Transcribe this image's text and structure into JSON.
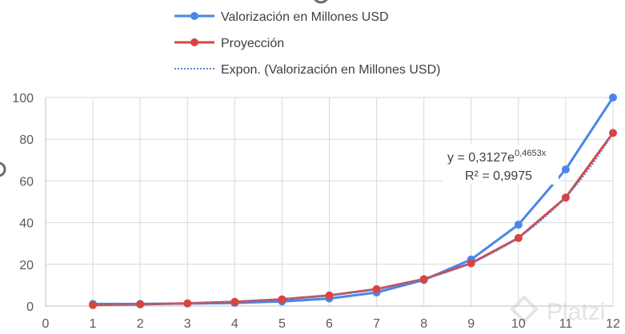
{
  "chart_data": {
    "type": "line",
    "x": [
      1,
      2,
      3,
      4,
      5,
      6,
      7,
      8,
      9,
      10,
      11,
      12
    ],
    "series": [
      {
        "name": "Valorización en Millones USD",
        "color": "#4a86e8",
        "values": [
          1.0,
          1.0,
          1.2,
          1.5,
          2.2,
          3.6,
          6.5,
          12.5,
          22.3,
          39.0,
          65.5,
          100.0
        ]
      },
      {
        "name": "Proyección",
        "color": "#d9443f",
        "values": [
          0.5,
          0.8,
          1.3,
          2.0,
          3.2,
          5.1,
          8.1,
          12.9,
          20.5,
          32.6,
          52.0,
          83.0
        ]
      },
      {
        "name": "Expon. (Valorización en Millones USD)",
        "color": "#5b8bd6",
        "style": "dotted",
        "equation": {
          "a": 0.3127,
          "b": 0.4653
        }
      }
    ],
    "xlim": [
      0,
      12
    ],
    "ylim": [
      0,
      100
    ],
    "xticks": [
      "0",
      "1",
      "2",
      "3",
      "4",
      "5",
      "6",
      "7",
      "8",
      "9",
      "10",
      "11",
      "12"
    ],
    "yticks": [
      "0",
      "20",
      "40",
      "60",
      "80",
      "100"
    ],
    "grid": true,
    "legend_position": "top",
    "annotations": {
      "equation_base": "y = 0,3127e",
      "equation_exponent": "0,4653x",
      "r_squared": "R² = 0,9975"
    },
    "watermark": "Platzi"
  }
}
